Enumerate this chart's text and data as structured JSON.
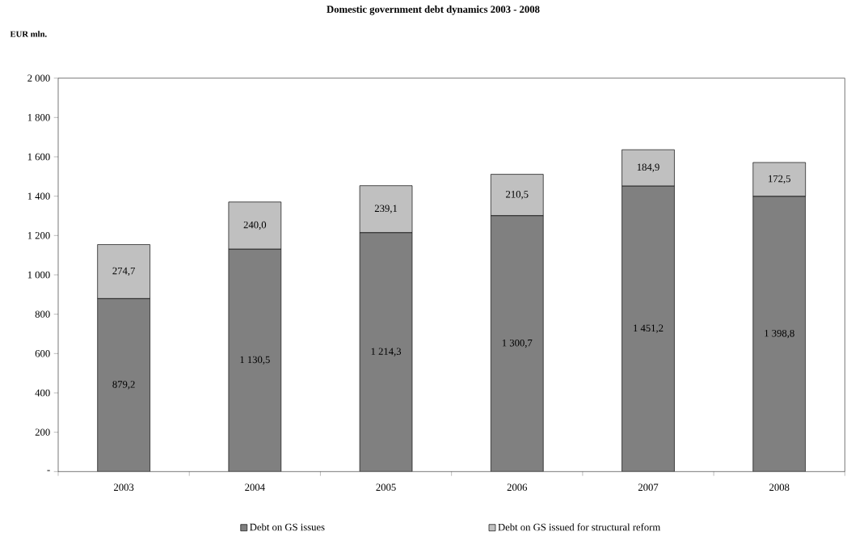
{
  "chart_data": {
    "type": "bar",
    "stacked": true,
    "title": "Domestic government debt dynamics 2003 - 2008",
    "ylabel": "EUR mln.",
    "categories": [
      "2003",
      "2004",
      "2005",
      "2006",
      "2007",
      "2008"
    ],
    "series": [
      {
        "name": "Debt on GS issues",
        "color": "#808080",
        "values": [
          879.2,
          1130.5,
          1214.3,
          1300.7,
          1451.2,
          1398.8
        ],
        "value_labels": [
          "879,2",
          "1 130,5",
          "1 214,3",
          "1 300,7",
          "1 451,2",
          "1 398,8"
        ]
      },
      {
        "name": "Debt on GS issued for structural reform",
        "color": "#c0c0c0",
        "values": [
          274.7,
          240.0,
          239.1,
          210.5,
          184.9,
          172.5
        ],
        "value_labels": [
          "274,7",
          "240,0",
          "239,1",
          "210,5",
          "184,9",
          "172,5"
        ]
      }
    ],
    "ylim": [
      0,
      2000
    ],
    "yticks": [
      {
        "value": 0,
        "label": "-"
      },
      200,
      400,
      600,
      800,
      {
        "value": 1000,
        "label": "1 000"
      },
      {
        "value": 1200,
        "label": "1 200"
      },
      {
        "value": 1400,
        "label": "1 400"
      },
      {
        "value": 1600,
        "label": "1 600"
      },
      {
        "value": 1800,
        "label": "1 800"
      },
      {
        "value": 2000,
        "label": "2 000"
      }
    ],
    "legend": "bottom"
  }
}
